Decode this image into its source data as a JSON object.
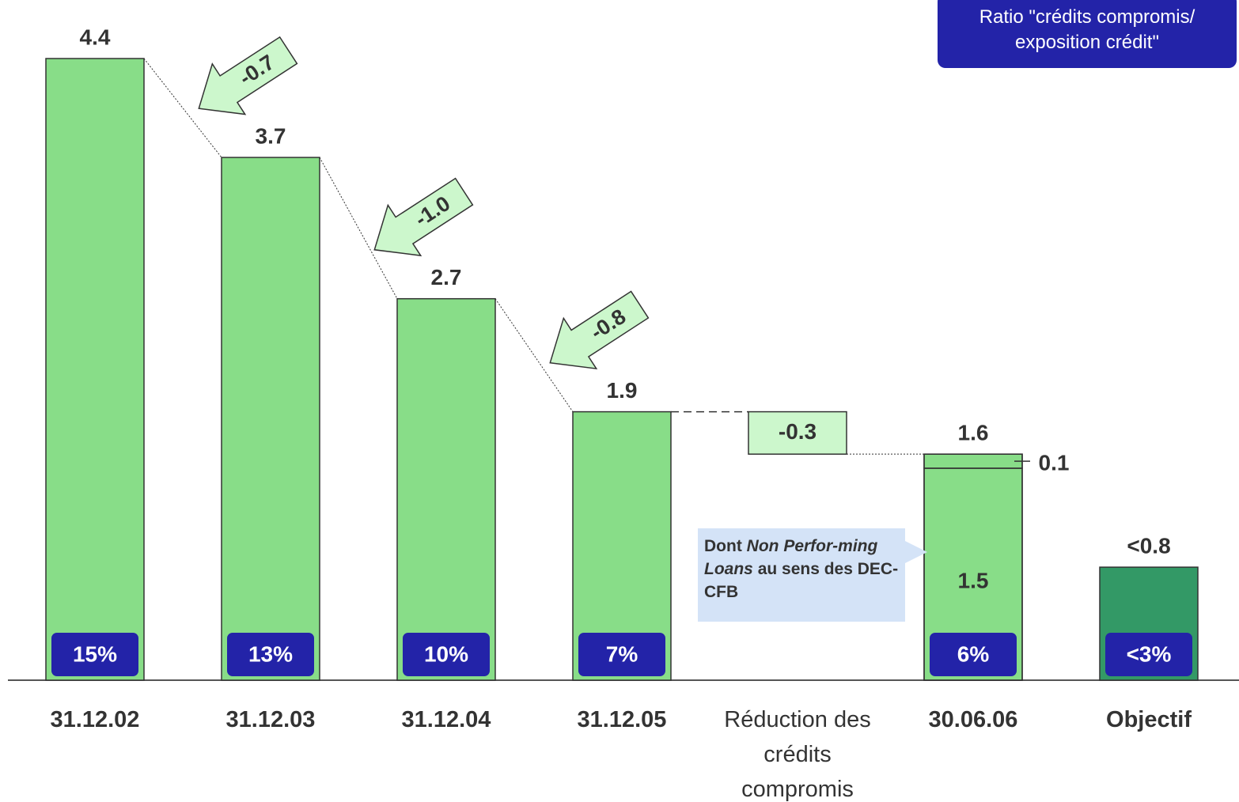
{
  "chart_data": {
    "type": "waterfall",
    "categories": [
      "31.12.02",
      "31.12.03",
      "31.12.04",
      "31.12.05",
      "Réduction des crédits compromis",
      "30.06.06",
      "Objectif"
    ],
    "values": [
      4.4,
      3.7,
      2.7,
      1.9,
      -0.3,
      1.6,
      0.8
    ],
    "value_labels": [
      "4.4",
      "3.7",
      "2.7",
      "1.9",
      "-0.3",
      "1.6",
      "<0.8"
    ],
    "colors": [
      "#88dd88",
      "#88dd88",
      "#88dd88",
      "#88dd88",
      "#ccf7cc",
      "#88dd88",
      "#339966"
    ],
    "ratios": [
      15,
      13,
      10,
      7,
      null,
      6,
      3
    ],
    "ratio_labels": [
      "15%",
      "13%",
      "10%",
      "7%",
      null,
      "6%",
      "<3%"
    ],
    "changes": [
      -0.7,
      -1.0,
      -0.8
    ],
    "change_labels": [
      "-0.7",
      "-1.0",
      "-0.8"
    ],
    "breakdown": {
      "category": "30.06.06",
      "values": [
        1.5,
        0.1
      ]
    },
    "annotation": [
      "Dont",
      "Non Perfor-ming Loans",
      "au sens des DEC-CFB"
    ],
    "legend": "Ratio \"crédits compromis/ exposition crédit\""
  }
}
